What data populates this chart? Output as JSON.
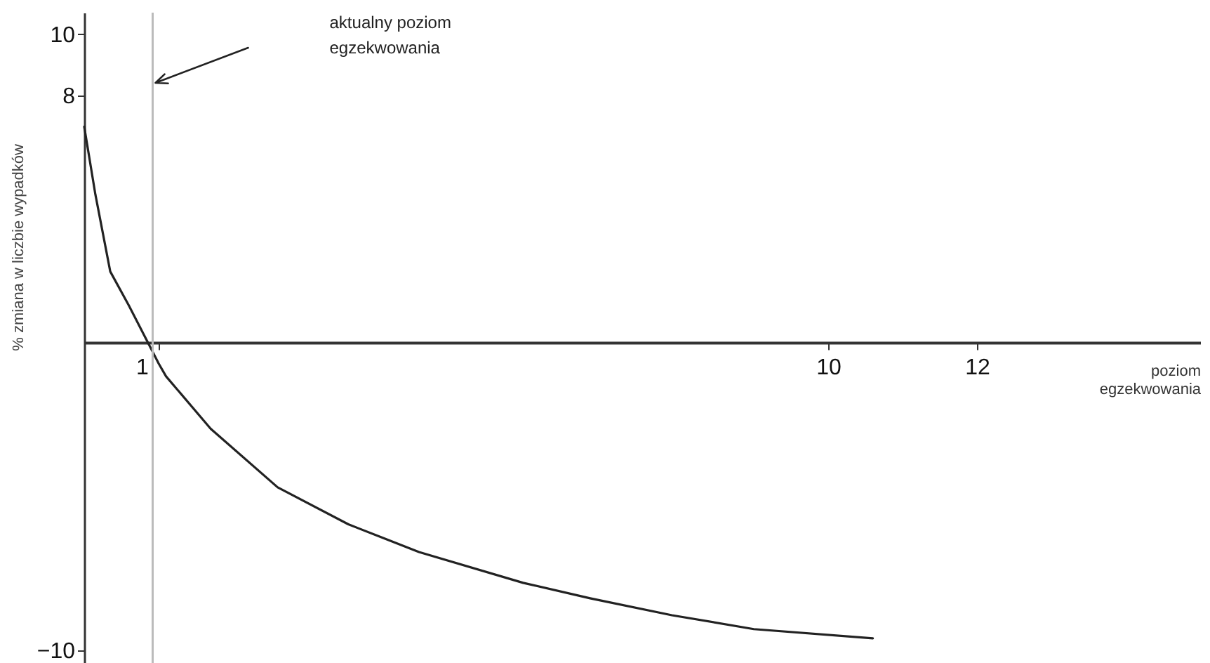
{
  "chart_data": {
    "type": "line",
    "xlabel": "poziom egzekwowania",
    "ylabel": "% zmiana w liczbie wypadków",
    "x": [
      0,
      0.15,
      0.35,
      0.6,
      1,
      1.1,
      1.7,
      2.6,
      3.55,
      4.5,
      5.9,
      6.8,
      7.9,
      9,
      10.6
    ],
    "series": [
      {
        "color": "#222222",
        "values": [
          7,
          4.8,
          2.3,
          1.2,
          -0.68,
          -1.1,
          -2.8,
          -4.7,
          -5.9,
          -6.8,
          -7.8,
          -8.3,
          -8.85,
          -9.3,
          -9.6
        ]
      }
    ],
    "xlim": [
      0,
      15
    ],
    "xticks": [
      1,
      10,
      12
    ],
    "ylim": [
      -10.4,
      10.7
    ],
    "yticks": [
      -10,
      8,
      10
    ],
    "ref_lines": [
      {
        "axis": "x",
        "value": 0.92,
        "color": "#bbbbbb"
      }
    ],
    "annotations": [
      "aktualny poziom egzekwowania"
    ],
    "grid": false
  }
}
